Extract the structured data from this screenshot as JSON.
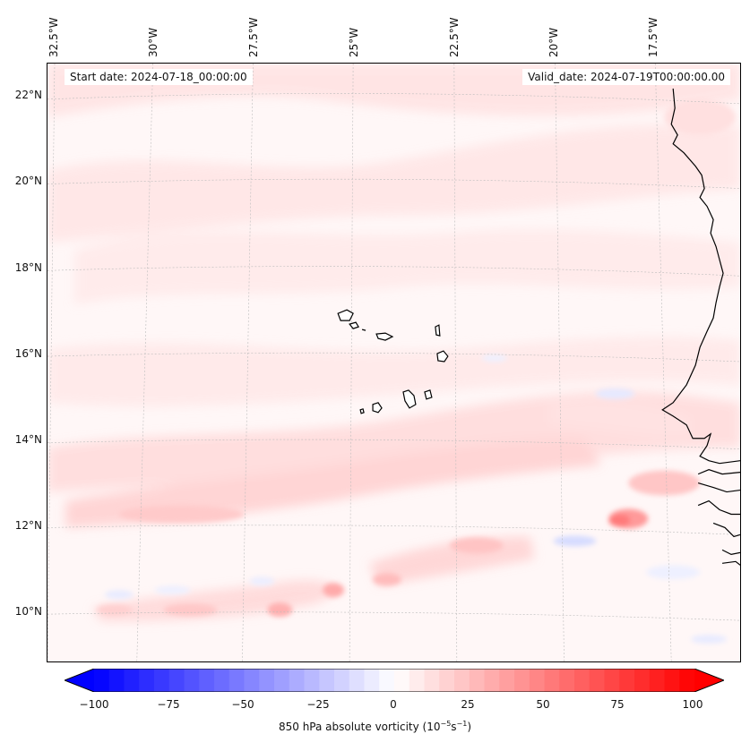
{
  "map": {
    "start_date": "Start date: 2024-07-18_00:00:00",
    "valid_date": "Valid_date: 2024-07-19T00:00:00.00",
    "lon_labels": [
      "32.5°W",
      "30°W",
      "27.5°W",
      "25°W",
      "22.5°W",
      "20°W",
      "17.5°W"
    ],
    "lat_labels": [
      "22°N",
      "20°N",
      "18°N",
      "16°N",
      "14°N",
      "12°N",
      "10°N"
    ]
  },
  "colorbar": {
    "ticks": [
      "−100",
      "−75",
      "−50",
      "−25",
      "0",
      "25",
      "50",
      "75",
      "100"
    ],
    "label_main": "850 hPa absolute vorticity (10",
    "label_exp1": "−5",
    "label_mid": "s",
    "label_exp2": "−1",
    "label_end": ")",
    "min": -100,
    "max": 100,
    "neg_color": "#0000ff",
    "pos_color": "#ff0000"
  }
}
